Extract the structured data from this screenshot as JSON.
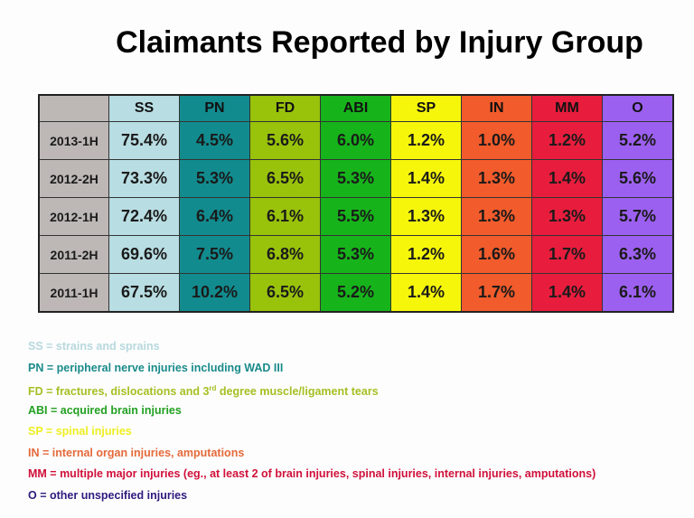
{
  "title": "Claimants Reported by Injury Group",
  "chart_data": {
    "type": "table",
    "columns": [
      "SS",
      "PN",
      "FD",
      "ABI",
      "SP",
      "IN",
      "MM",
      "O"
    ],
    "column_colors": [
      "#b8dde2",
      "#128b8e",
      "#99c20b",
      "#17b31b",
      "#f6f60b",
      "#f25b2b",
      "#e81d3d",
      "#9c60f0"
    ],
    "row_label_color": "#bdb8b6",
    "rows": [
      {
        "label": "2013-1H",
        "values": [
          "75.4%",
          "4.5%",
          "5.6%",
          "6.0%",
          "1.2%",
          "1.0%",
          "1.2%",
          "5.2%"
        ]
      },
      {
        "label": "2012-2H",
        "values": [
          "73.3%",
          "5.3%",
          "6.5%",
          "5.3%",
          "1.4%",
          "1.3%",
          "1.4%",
          "5.6%"
        ]
      },
      {
        "label": "2012-1H",
        "values": [
          "72.4%",
          "6.4%",
          "6.1%",
          "5.5%",
          "1.3%",
          "1.3%",
          "1.3%",
          "5.7%"
        ]
      },
      {
        "label": "2011-2H",
        "values": [
          "69.6%",
          "7.5%",
          "6.8%",
          "5.3%",
          "1.2%",
          "1.6%",
          "1.7%",
          "6.3%"
        ]
      },
      {
        "label": "2011-1H",
        "values": [
          "67.5%",
          "10.2%",
          "6.5%",
          "5.2%",
          "1.4%",
          "1.7%",
          "1.4%",
          "6.1%"
        ]
      }
    ]
  },
  "legend": [
    {
      "text": "SS = strains and sprains",
      "color": "#b7d8dd"
    },
    {
      "text": "PN = peripheral nerve injuries including WAD III",
      "color": "#1a8a8a"
    },
    {
      "text": "FD = fractures, dislocations and 3",
      "sup": "rd",
      "tail": " degree muscle/ligament tears",
      "color": "#a6bf22"
    },
    {
      "text": "ABI = acquired brain injuries",
      "color": "#22a022"
    },
    {
      "text": "SP = spinal injuries",
      "color": "#eeee22"
    },
    {
      "text": "IN = internal organ injuries, amputations",
      "color": "#e5693a"
    },
    {
      "text": "MM = multiple major injuries (eg., at least 2 of brain injuries, spinal injuries, internal injuries, amputations)",
      "color": "#d0103a"
    },
    {
      "text": "O = other unspecified injuries",
      "color": "#2e1a7e"
    }
  ]
}
